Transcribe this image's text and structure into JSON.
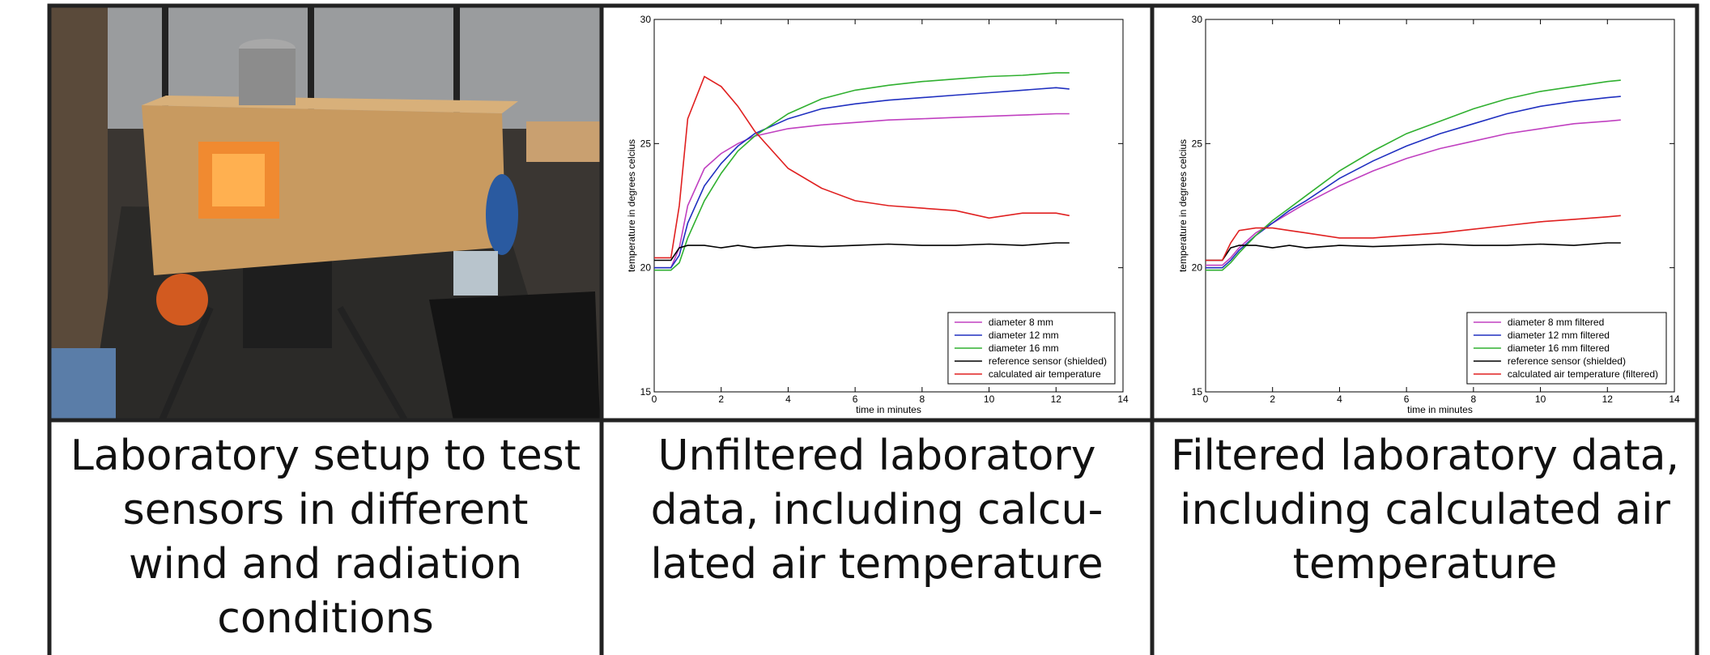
{
  "captions": [
    [
      "Laboratory setup to test",
      "sensors in different",
      "wind and radiation",
      "conditions"
    ],
    [
      "Unfiltered laboratory",
      "data, including calcu-",
      "lated air temperature"
    ],
    [
      "Filtered laboratory data,",
      "including calculated air",
      "temperature"
    ]
  ],
  "chart_data": [
    {
      "type": "line",
      "xlabel": "time in minutes",
      "ylabel": "temperature in degrees celcius",
      "xlim": [
        0,
        14
      ],
      "xticks": [
        0,
        2,
        4,
        6,
        8,
        10,
        12,
        14
      ],
      "ylim": [
        15,
        30
      ],
      "yticks": [
        15,
        20,
        25,
        30
      ],
      "legend": "lower right",
      "x": [
        0,
        0.5,
        0.75,
        1,
        1.5,
        2,
        2.5,
        3,
        4,
        5,
        6,
        7,
        8,
        9,
        10,
        11,
        12,
        12.4
      ],
      "series": [
        {
          "name": "diameter 8 mm",
          "color": "#c040c0",
          "values": [
            20.0,
            20.0,
            20.8,
            22.5,
            24.0,
            24.6,
            25.0,
            25.3,
            25.6,
            25.75,
            25.85,
            25.95,
            26.0,
            26.05,
            26.1,
            26.15,
            26.2,
            26.2
          ]
        },
        {
          "name": "diameter 12 mm",
          "color": "#2030c0",
          "values": [
            20.0,
            20.0,
            20.5,
            21.8,
            23.3,
            24.2,
            24.9,
            25.4,
            26.0,
            26.4,
            26.6,
            26.75,
            26.85,
            26.95,
            27.05,
            27.15,
            27.25,
            27.2
          ]
        },
        {
          "name": "diameter 16 mm",
          "color": "#30b030",
          "values": [
            19.9,
            19.9,
            20.2,
            21.2,
            22.7,
            23.8,
            24.7,
            25.3,
            26.2,
            26.8,
            27.15,
            27.35,
            27.5,
            27.6,
            27.7,
            27.75,
            27.85,
            27.85
          ]
        },
        {
          "name": "reference sensor (shielded)",
          "color": "#000000",
          "values": [
            20.3,
            20.3,
            20.8,
            20.9,
            20.9,
            20.8,
            20.9,
            20.8,
            20.9,
            20.85,
            20.9,
            20.95,
            20.9,
            20.9,
            20.95,
            20.9,
            21.0,
            21.0
          ]
        },
        {
          "name": "calculated air temperature",
          "color": "#e02020",
          "values": [
            20.4,
            20.4,
            22.5,
            26.0,
            27.7,
            27.3,
            26.5,
            25.5,
            24.0,
            23.2,
            22.7,
            22.5,
            22.4,
            22.3,
            22.0,
            22.2,
            22.2,
            22.1
          ]
        }
      ]
    },
    {
      "type": "line",
      "xlabel": "time in minutes",
      "ylabel": "temperature in degrees celcius",
      "xlim": [
        0,
        14
      ],
      "xticks": [
        0,
        2,
        4,
        6,
        8,
        10,
        12,
        14
      ],
      "ylim": [
        15,
        30
      ],
      "yticks": [
        15,
        20,
        25,
        30
      ],
      "legend": "lower right",
      "x": [
        0,
        0.5,
        0.75,
        1,
        1.5,
        2,
        2.5,
        3,
        4,
        5,
        6,
        7,
        8,
        9,
        10,
        11,
        12,
        12.4
      ],
      "series": [
        {
          "name": "diameter 8 mm filtered",
          "color": "#c040c0",
          "values": [
            20.1,
            20.1,
            20.4,
            20.8,
            21.4,
            21.8,
            22.2,
            22.6,
            23.3,
            23.9,
            24.4,
            24.8,
            25.1,
            25.4,
            25.6,
            25.8,
            25.9,
            25.95
          ]
        },
        {
          "name": "diameter 12 mm filtered",
          "color": "#2030c0",
          "values": [
            20.0,
            20.0,
            20.3,
            20.7,
            21.3,
            21.8,
            22.3,
            22.7,
            23.6,
            24.3,
            24.9,
            25.4,
            25.8,
            26.2,
            26.5,
            26.7,
            26.85,
            26.9
          ]
        },
        {
          "name": "diameter 16 mm filtered",
          "color": "#30b030",
          "values": [
            19.9,
            19.9,
            20.2,
            20.6,
            21.3,
            21.9,
            22.4,
            22.9,
            23.9,
            24.7,
            25.4,
            25.9,
            26.4,
            26.8,
            27.1,
            27.3,
            27.5,
            27.55
          ]
        },
        {
          "name": "reference sensor (shielded)",
          "color": "#000000",
          "values": [
            20.3,
            20.3,
            20.8,
            20.9,
            20.9,
            20.8,
            20.9,
            20.8,
            20.9,
            20.85,
            20.9,
            20.95,
            20.9,
            20.9,
            20.95,
            20.9,
            21.0,
            21.0
          ]
        },
        {
          "name": "calculated air temperature (filtered)",
          "color": "#e02020",
          "values": [
            20.3,
            20.3,
            21.0,
            21.5,
            21.6,
            21.6,
            21.5,
            21.4,
            21.2,
            21.2,
            21.3,
            21.4,
            21.55,
            21.7,
            21.85,
            21.95,
            22.05,
            22.1
          ]
        }
      ]
    }
  ]
}
